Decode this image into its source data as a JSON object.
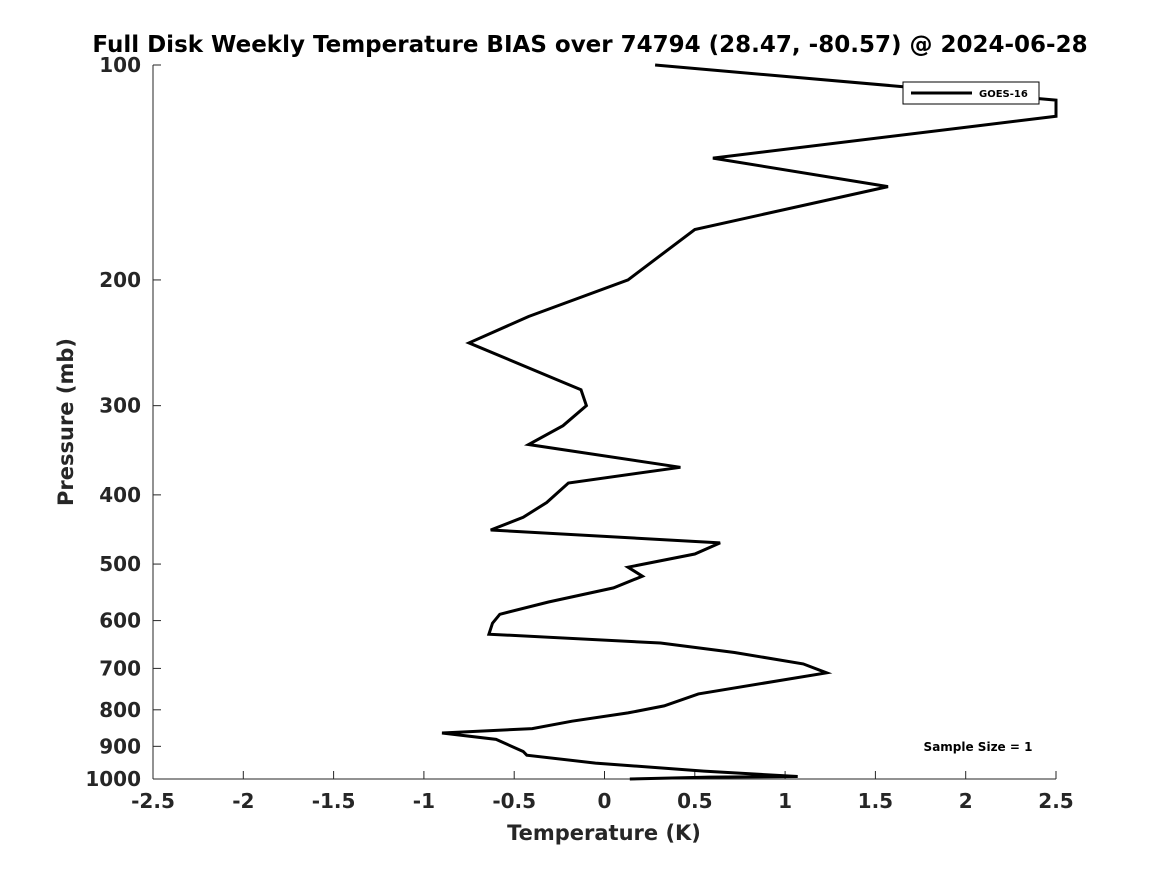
{
  "chart_data": {
    "type": "line",
    "title": "Full Disk Weekly Temperature BIAS over 74794 (28.47, -80.57) @ 2024-06-28",
    "xlabel": "Temperature (K)",
    "ylabel": "Pressure (mb)",
    "xlim": [
      -2.5,
      2.5
    ],
    "ylim": [
      100,
      1000
    ],
    "y_scale": "log",
    "y_reversed": true,
    "grid": false,
    "xticks": [
      -2.5,
      -2,
      -1.5,
      -1,
      -0.5,
      0,
      0.5,
      1,
      1.5,
      2,
      2.5
    ],
    "xtick_labels": [
      "-2.5",
      "-2",
      "-1.5",
      "-1",
      "-0.5",
      "0",
      "0.5",
      "1",
      "1.5",
      "2",
      "2.5"
    ],
    "yticks": [
      100,
      200,
      300,
      400,
      500,
      600,
      700,
      800,
      900,
      1000
    ],
    "ytick_labels": [
      "100",
      "200",
      "300",
      "400",
      "500",
      "600",
      "700",
      "800",
      "900",
      "1000"
    ],
    "legend_position": "top-right",
    "annotation": "Sample Size = 1",
    "series": [
      {
        "name": "GOES-16",
        "color": "#000000",
        "points": [
          {
            "x": 0.28,
            "p": 100
          },
          {
            "x": 2.5,
            "p": 112
          },
          {
            "x": 2.5,
            "p": 118
          },
          {
            "x": 0.6,
            "p": 135
          },
          {
            "x": 1.57,
            "p": 148
          },
          {
            "x": 0.5,
            "p": 170
          },
          {
            "x": 0.13,
            "p": 200
          },
          {
            "x": -0.42,
            "p": 225
          },
          {
            "x": -0.75,
            "p": 245
          },
          {
            "x": -0.13,
            "p": 285
          },
          {
            "x": -0.1,
            "p": 300
          },
          {
            "x": -0.23,
            "p": 320
          },
          {
            "x": -0.42,
            "p": 340
          },
          {
            "x": 0.42,
            "p": 366
          },
          {
            "x": -0.2,
            "p": 385
          },
          {
            "x": -0.32,
            "p": 410
          },
          {
            "x": -0.45,
            "p": 430
          },
          {
            "x": -0.63,
            "p": 448
          },
          {
            "x": 0.64,
            "p": 467
          },
          {
            "x": 0.5,
            "p": 484
          },
          {
            "x": 0.13,
            "p": 505
          },
          {
            "x": 0.21,
            "p": 520
          },
          {
            "x": 0.05,
            "p": 540
          },
          {
            "x": -0.31,
            "p": 565
          },
          {
            "x": -0.58,
            "p": 588
          },
          {
            "x": -0.62,
            "p": 605
          },
          {
            "x": -0.64,
            "p": 627
          },
          {
            "x": 0.31,
            "p": 645
          },
          {
            "x": 0.72,
            "p": 665
          },
          {
            "x": 1.1,
            "p": 690
          },
          {
            "x": 1.23,
            "p": 710
          },
          {
            "x": 0.52,
            "p": 760
          },
          {
            "x": 0.33,
            "p": 790
          },
          {
            "x": 0.13,
            "p": 808
          },
          {
            "x": -0.18,
            "p": 830
          },
          {
            "x": -0.4,
            "p": 850
          },
          {
            "x": -0.9,
            "p": 862
          },
          {
            "x": -0.6,
            "p": 880
          },
          {
            "x": -0.45,
            "p": 915
          },
          {
            "x": -0.43,
            "p": 926
          },
          {
            "x": -0.05,
            "p": 950
          },
          {
            "x": 0.55,
            "p": 975
          },
          {
            "x": 1.07,
            "p": 992
          },
          {
            "x": 0.58,
            "p": 994
          },
          {
            "x": 0.14,
            "p": 1000
          }
        ]
      }
    ]
  }
}
